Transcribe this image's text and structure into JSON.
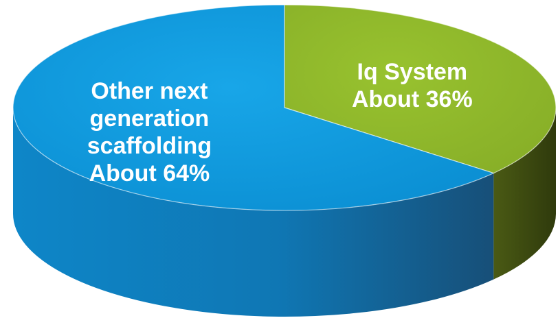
{
  "chart_data": {
    "type": "pie",
    "style": "3d",
    "slices": [
      {
        "name": "Iq System",
        "value": 36,
        "color": "#8db62b",
        "side_color": "#3d4a12",
        "label_lines": [
          "Iq System",
          "About 36%"
        ]
      },
      {
        "name": "Other next generation scaffolding",
        "value": 64,
        "color": "#1196d8",
        "side_color": "#1a6fa0",
        "label_lines": [
          "Other next",
          "generation",
          "scaffolding",
          "About 64%"
        ]
      }
    ],
    "label_color": "#ffffff"
  }
}
